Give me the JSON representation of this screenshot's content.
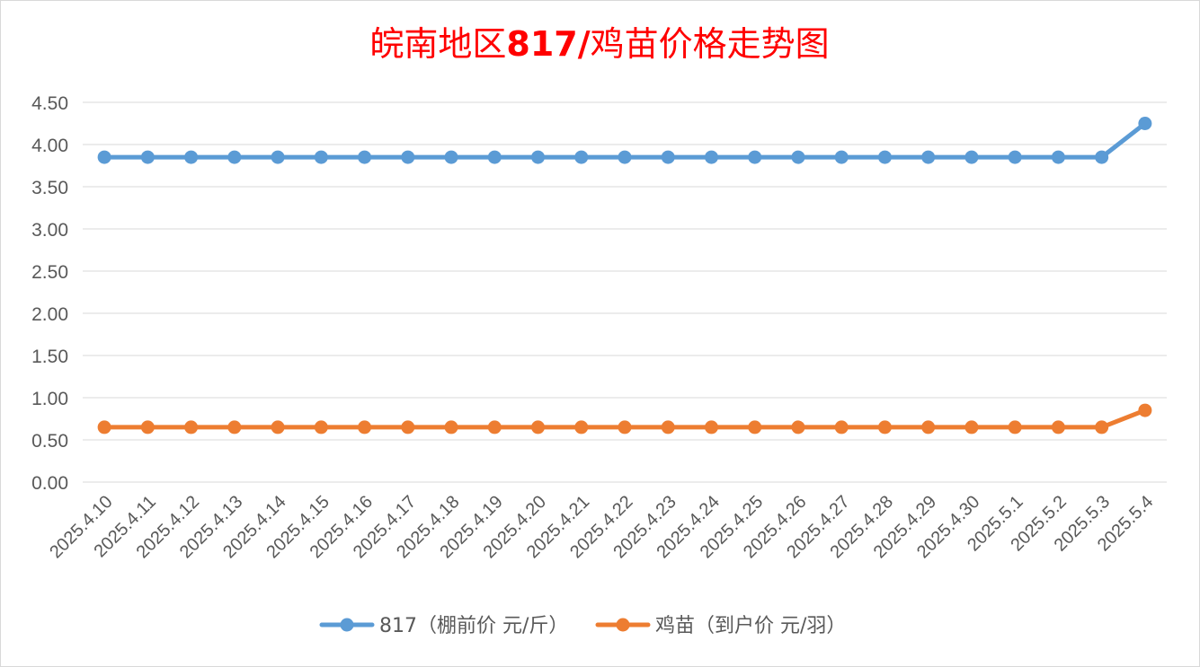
{
  "chart_data": {
    "type": "line",
    "title_prefix": "皖南地区",
    "title_number": "817/",
    "title_suffix": "鸡苗价格走势图",
    "categories": [
      "2025.4.10",
      "2025.4.11",
      "2025.4.12",
      "2025.4.13",
      "2025.4.14",
      "2025.4.15",
      "2025.4.16",
      "2025.4.17",
      "2025.4.18",
      "2025.4.19",
      "2025.4.20",
      "2025.4.21",
      "2025.4.22",
      "2025.4.23",
      "2025.4.24",
      "2025.4.25",
      "2025.4.26",
      "2025.4.27",
      "2025.4.28",
      "2025.4.29",
      "2025.4.30",
      "2025.5.1",
      "2025.5.2",
      "2025.5.3",
      "2025.5.4"
    ],
    "y_ticks": [
      "0.00",
      "0.50",
      "1.00",
      "1.50",
      "2.00",
      "2.50",
      "3.00",
      "3.50",
      "4.00",
      "4.50"
    ],
    "ylim": [
      0,
      4.5
    ],
    "grid": true,
    "legend_position": "bottom",
    "series": [
      {
        "name": "817（棚前价 元/斤）",
        "color": "#5b9bd5",
        "values": [
          3.85,
          3.85,
          3.85,
          3.85,
          3.85,
          3.85,
          3.85,
          3.85,
          3.85,
          3.85,
          3.85,
          3.85,
          3.85,
          3.85,
          3.85,
          3.85,
          3.85,
          3.85,
          3.85,
          3.85,
          3.85,
          3.85,
          3.85,
          3.85,
          4.25
        ]
      },
      {
        "name": "鸡苗（到户价 元/羽）",
        "color": "#ed7d31",
        "values": [
          0.65,
          0.65,
          0.65,
          0.65,
          0.65,
          0.65,
          0.65,
          0.65,
          0.65,
          0.65,
          0.65,
          0.65,
          0.65,
          0.65,
          0.65,
          0.65,
          0.65,
          0.65,
          0.65,
          0.65,
          0.65,
          0.65,
          0.65,
          0.65,
          0.85
        ]
      }
    ]
  },
  "colors": {
    "title": "#ff0000",
    "grid": "#d9d9d9",
    "axis_text": "#595959"
  }
}
